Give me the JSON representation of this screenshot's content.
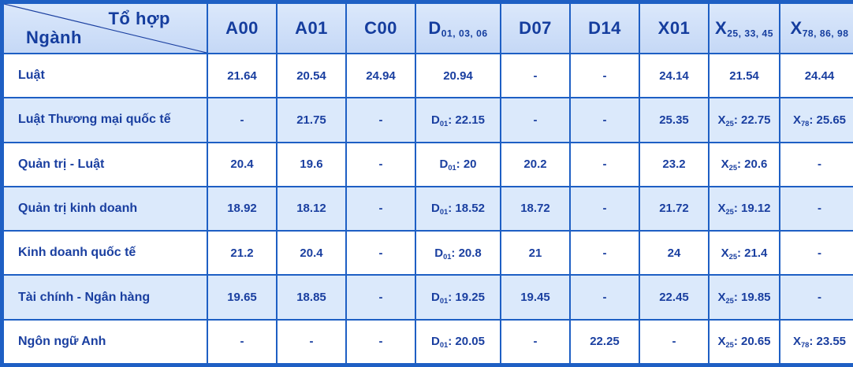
{
  "header": {
    "corner_top": "Tổ hợp",
    "corner_bottom": "Ngành",
    "columns": [
      {
        "base": "A00",
        "sub": ""
      },
      {
        "base": "A01",
        "sub": ""
      },
      {
        "base": "C00",
        "sub": ""
      },
      {
        "base": "D",
        "sub": "01, 03, 06"
      },
      {
        "base": "D07",
        "sub": ""
      },
      {
        "base": "D14",
        "sub": ""
      },
      {
        "base": "X01",
        "sub": ""
      },
      {
        "base": "X",
        "sub": "25, 33, 45"
      },
      {
        "base": "X",
        "sub": "78, 86, 98"
      }
    ]
  },
  "rows": [
    {
      "major": "Luật",
      "cells": [
        {
          "base": "21.64",
          "sub": "",
          "value": ""
        },
        {
          "base": "20.54",
          "sub": "",
          "value": ""
        },
        {
          "base": "24.94",
          "sub": "",
          "value": ""
        },
        {
          "base": "20.94",
          "sub": "",
          "value": ""
        },
        {
          "base": "-",
          "sub": "",
          "value": ""
        },
        {
          "base": "-",
          "sub": "",
          "value": ""
        },
        {
          "base": "24.14",
          "sub": "",
          "value": ""
        },
        {
          "base": "21.54",
          "sub": "",
          "value": ""
        },
        {
          "base": "24.44",
          "sub": "",
          "value": ""
        }
      ]
    },
    {
      "major": "Luật Thương mại quốc tế",
      "cells": [
        {
          "base": "-",
          "sub": "",
          "value": ""
        },
        {
          "base": "21.75",
          "sub": "",
          "value": ""
        },
        {
          "base": "-",
          "sub": "",
          "value": ""
        },
        {
          "base": "D",
          "sub": "01",
          "value": ": 22.15"
        },
        {
          "base": "-",
          "sub": "",
          "value": ""
        },
        {
          "base": "-",
          "sub": "",
          "value": ""
        },
        {
          "base": "25.35",
          "sub": "",
          "value": ""
        },
        {
          "base": "X",
          "sub": "25",
          "value": ": 22.75"
        },
        {
          "base": "X",
          "sub": "78",
          "value": ": 25.65"
        }
      ]
    },
    {
      "major": "Quản trị - Luật",
      "cells": [
        {
          "base": "20.4",
          "sub": "",
          "value": ""
        },
        {
          "base": "19.6",
          "sub": "",
          "value": ""
        },
        {
          "base": "-",
          "sub": "",
          "value": ""
        },
        {
          "base": "D",
          "sub": "01",
          "value": ": 20"
        },
        {
          "base": "20.2",
          "sub": "",
          "value": ""
        },
        {
          "base": "-",
          "sub": "",
          "value": ""
        },
        {
          "base": "23.2",
          "sub": "",
          "value": ""
        },
        {
          "base": "X",
          "sub": "25",
          "value": ": 20.6"
        },
        {
          "base": "-",
          "sub": "",
          "value": ""
        }
      ]
    },
    {
      "major": "Quản trị kinh doanh",
      "cells": [
        {
          "base": "18.92",
          "sub": "",
          "value": ""
        },
        {
          "base": "18.12",
          "sub": "",
          "value": ""
        },
        {
          "base": "-",
          "sub": "",
          "value": ""
        },
        {
          "base": "D",
          "sub": "01",
          "value": ": 18.52"
        },
        {
          "base": "18.72",
          "sub": "",
          "value": ""
        },
        {
          "base": "-",
          "sub": "",
          "value": ""
        },
        {
          "base": "21.72",
          "sub": "",
          "value": ""
        },
        {
          "base": "X",
          "sub": "25",
          "value": ": 19.12"
        },
        {
          "base": "-",
          "sub": "",
          "value": ""
        }
      ]
    },
    {
      "major": "Kinh doanh quốc tế",
      "cells": [
        {
          "base": "21.2",
          "sub": "",
          "value": ""
        },
        {
          "base": "20.4",
          "sub": "",
          "value": ""
        },
        {
          "base": "-",
          "sub": "",
          "value": ""
        },
        {
          "base": "D",
          "sub": "01",
          "value": ": 20.8"
        },
        {
          "base": "21",
          "sub": "",
          "value": ""
        },
        {
          "base": "-",
          "sub": "",
          "value": ""
        },
        {
          "base": "24",
          "sub": "",
          "value": ""
        },
        {
          "base": "X",
          "sub": "25",
          "value": ": 21.4"
        },
        {
          "base": "-",
          "sub": "",
          "value": ""
        }
      ]
    },
    {
      "major": "Tài chính - Ngân hàng",
      "cells": [
        {
          "base": "19.65",
          "sub": "",
          "value": ""
        },
        {
          "base": "18.85",
          "sub": "",
          "value": ""
        },
        {
          "base": "-",
          "sub": "",
          "value": ""
        },
        {
          "base": "D",
          "sub": "01",
          "value": ": 19.25"
        },
        {
          "base": "19.45",
          "sub": "",
          "value": ""
        },
        {
          "base": "-",
          "sub": "",
          "value": ""
        },
        {
          "base": "22.45",
          "sub": "",
          "value": ""
        },
        {
          "base": "X",
          "sub": "25",
          "value": ": 19.85"
        },
        {
          "base": "-",
          "sub": "",
          "value": ""
        }
      ]
    },
    {
      "major": "Ngôn ngữ Anh",
      "cells": [
        {
          "base": "-",
          "sub": "",
          "value": ""
        },
        {
          "base": "-",
          "sub": "",
          "value": ""
        },
        {
          "base": "-",
          "sub": "",
          "value": ""
        },
        {
          "base": "D",
          "sub": "01",
          "value": ": 20.05"
        },
        {
          "base": "-",
          "sub": "",
          "value": ""
        },
        {
          "base": "22.25",
          "sub": "",
          "value": ""
        },
        {
          "base": "-",
          "sub": "",
          "value": ""
        },
        {
          "base": "X",
          "sub": "25",
          "value": ": 20.65"
        },
        {
          "base": "X",
          "sub": "78",
          "value": ": 23.55"
        }
      ]
    }
  ]
}
